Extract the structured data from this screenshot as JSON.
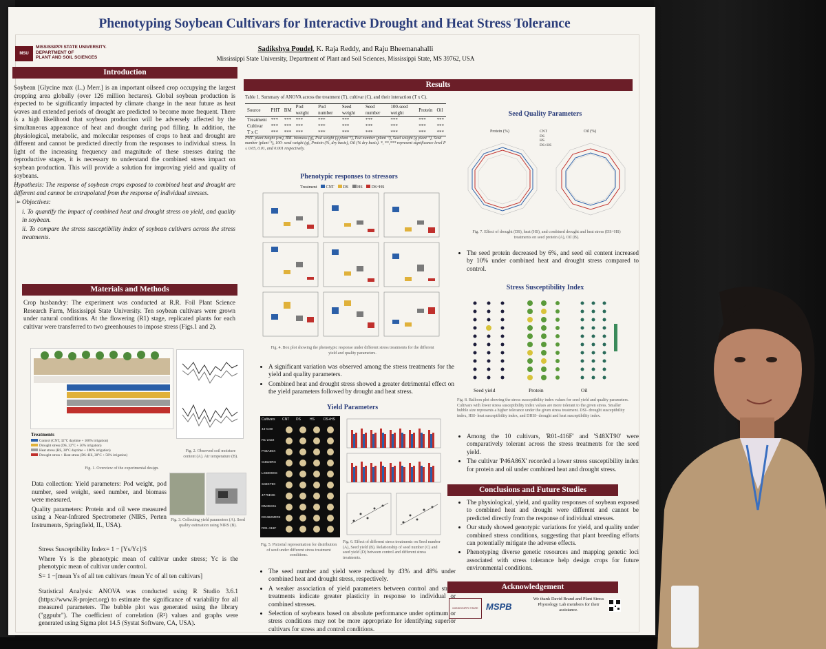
{
  "poster": {
    "title": "Phenotyping Soybean Cultivars for Interactive Drought and Heat Stress Tolerance",
    "authors_lead": "Sadikshya Poudel",
    "authors_rest": ", K. Raja Reddy, and Raju Bheemanahalli",
    "affiliation": "Mississippi State University, Department of Plant and Soil Sciences, Mississippi State, MS 39762, USA",
    "logo": {
      "line1": "MISSISSIPPI STATE UNIVERSITY.",
      "line2": "DEPARTMENT OF",
      "line3": "PLANT AND SOIL SCIENCES",
      "mark": "MSU"
    }
  },
  "introduction": {
    "heading": "Introduction",
    "paragraph": "Soybean [Glycine max (L.) Merr.] is an important oilseed crop occupying the largest cropping area globally (over 126 million hectares). Global soybean production is expected to be significantly impacted by climate change in the near future as heat waves and extended periods of drought are predicted to become more frequent. There is a high likelihood that soybean production will be adversely affected by the simultaneous appearance of heat and drought during pod filling. In addition, the physiological, metabolic, and molecular responses of crops to heat and drought are different and cannot be predicted directly from the responses to individual stress. In light of the increasing frequency and magnitude of these stresses during the reproductive stages, it is necessary to understand the combined stress impact on soybean production. This will provide a solution for improving yield and quality of soybeans.",
    "hypothesis": "Hypothesis: The response of soybean crops exposed to combined heat and drought are different and cannot be extrapolated from the response of individual stresses.",
    "objectives_label": "Objectives:",
    "objective_1": "i. To quantify the impact of combined heat and drought stress on yield, and quality in soybean.",
    "objective_2": "ii. To compare the stress susceptibility index of soybean cultivars across the stress treatments."
  },
  "methods": {
    "heading": "Materials and Methods",
    "crop_husbandry": "Crop husbandry: The experiment was conducted at R.R. Foil Plant Science Research Farm, Mississippi State University. Ten soybean cultivars were grown under natural conditions. At the flowering (R1) stage, replicated plants for each cultivar were transferred to two greenhouses to impose stress (Figs.1 and 2).",
    "treatments_label": "Treatments",
    "treatments": [
      "Control (CNT, 32°C daytime + 100% irrigation)",
      "Drought stress (DS, 32°C + 50% irrigation)",
      "Heat stress (HS, 38°C daytime + 100% irrigation)",
      "Drought stress + Heat stress (DS+HS, 38°C + 50% irrigation)"
    ],
    "fig1_caption": "Fig. 1. Overview of the experimental design.",
    "fig2_caption": "Fig. 2. Observed soil moisture content (A). Air temperature (B).",
    "data_collection": "Data collection: Yield parameters: Pod weight, pod number, seed weight, seed number, and biomass were measured.",
    "quality": "Quality parameters: Protein and oil were measured using a Near-Infrared Spectrometer (NIRS, Perten Instruments, Springfield, IL, USA).",
    "fig3_caption": "Fig. 3. Collecting yield parameters (A). Seed quality estimation using NIRS (B).",
    "ssi_formula": "Stress Susceptibility Index= 1 − [Ys/Yc]/S",
    "ssi_desc": "Where Ys is the phenotypic mean of cultivar under stress; Yc is the phenotypic mean of cultivar under control.",
    "ssi_s": "S= 1 −[mean Ys of all ten cultivars /mean Yc of all ten cultivars]",
    "stats": "Statistical Analysis: ANOVA was conducted using R Studio 3.6.1 (https://www.R-project.org) to estimate the significance of variability for all measured parameters. The bubble plot was generated using the library (\"ggpubr\"). The coefficient of correlation (R²) values and graphs were generated using Sigma plot 14.5 (Systat Software, CA, USA)."
  },
  "results": {
    "heading": "Results",
    "table_caption": "Table 1. Summary of ANOVA across the treatment (T), cultivar (C), and their interaction (T x C).",
    "table_headers": [
      "Source",
      "PHT",
      "BM",
      "Pod weight",
      "Pod number",
      "Seed weight",
      "Seed number",
      "100-seed weight",
      "Protein",
      "Oil"
    ],
    "table_rows": [
      [
        "Treatment",
        "***",
        "***",
        "***",
        "***",
        "***",
        "***",
        "***",
        "***",
        "***"
      ],
      [
        "Cultivar",
        "***",
        "***",
        "***",
        "***",
        "***",
        "***",
        "***",
        "***",
        "***"
      ],
      [
        "T x C",
        "***",
        "***",
        "***",
        "***",
        "***",
        "***",
        "***",
        "***",
        "***"
      ]
    ],
    "table_note": "PHT- plant height (cm), BM- biomass (g), Pod weight (g plant⁻¹), Pod number (plant⁻¹), Seed weight (g plant⁻¹), Seed number (plant⁻¹), 100- seed weight (g), Protein (%, dry basis), Oil (% dry basis). *, **,*** represent significance level P ≤ 0.05, 0.01, and 0.001 respectively.",
    "phenotypic_title": "Phenotypic responses to stressors",
    "legend_label": "Treatment",
    "legend_items": [
      "CNT",
      "DS",
      "HS",
      "DS+HS"
    ],
    "fig4_caption": "Fig. 4. Box plot showing the phenotypic response under different stress treatments for the different yield and quality parameters.",
    "bullets_1": [
      "A significant variation was observed among the stress treatments for the yield and quality parameters.",
      "Combined heat and drought stress showed a greater detrimental effect on the yield parameters followed by drought and heat stress."
    ],
    "yield_title": "Yield Parameters",
    "cultivar_header": [
      "Cultivars",
      "CNT",
      "DS",
      "HS",
      "DS+HS"
    ],
    "cultivars": [
      "44-G49",
      "R1-2422",
      "P46A86X",
      "G4620RX",
      "LS5009XS",
      "S48XT90",
      "4775E3S",
      "DM45X61",
      "DG4625RR2",
      "R01-416F"
    ],
    "fig5_caption": "Fig. 5. Pictorial representation for distribution of seed under different stress treatment conditions.",
    "fig6_caption": "Fig. 6. Effect of different stress treatments on Seed number (A), Seed yield (B). Relationship of seed number (C) and seed yield (D) between control and different stress treatments.",
    "bullets_2": [
      "The seed number and yield were reduced by 43% and 48% under combined heat and drought stress, respectively.",
      "A weaker association of yield parameters between control and stress treatments indicate greater plasticity in response to individual or combined stresses.",
      "Selection of soybeans based on absolute performance under optimum or stress conditions may not be more appropriate for identifying superior cultivars for stress and control conditions."
    ]
  },
  "seed_quality": {
    "title": "Seed Quality Parameters",
    "radar_a_label": "Protein (%)",
    "radar_b_label": "Oil (%)",
    "fig7_caption": "Fig. 7. Effect of drought (DS), heat (HS), and combined drought and heat stress (DS+HS) treatments on seed protein (A), Oil (B).",
    "bullet": "The seed protein decreased by 6%, and seed oil content increased by 10% under combined heat and drought stress compared to control."
  },
  "ssi": {
    "title": "Stress Susceptibility Index",
    "columns": [
      "Seed yield",
      "Protein",
      "Oil"
    ],
    "fig8_caption": "Fig. 8. Balloon plot showing the stress susceptibility index values for seed yield and quality parameters. Cultivars with lower stress susceptibility index values are more tolerant to the given stress. Smaller bubble size represents a higher tolerance under the given stress treatment. DSI- drought susceptibility index, HSI- heat susceptibility index, and DHSI- drought and heat susceptibility index.",
    "bullets": [
      "Among the 10 cultivars, 'R01-416F' and 'S48XT90' were comparatively tolerant across the stress treatments for the seed yield.",
      "The cultivar 'P46A86X' recorded a lower stress susceptibility index for protein and oil under combined heat and drought stress."
    ]
  },
  "conclusions": {
    "heading": "Conclusions and Future Studies",
    "bullets": [
      "The physiological, yield, and quality responses of soybean exposed to combined heat and drought were different and cannot be predicted directly from the response of individual stresses.",
      "Our study showed genotypic variations for yield, and quality under combined stress conditions, suggesting that plant breeding efforts can potentially mitigate the adverse effects.",
      "Phenotyping diverse genetic resources and mapping genetic loci associated with stress tolerance help design crops for future environmental conditions."
    ]
  },
  "acknowledgement": {
    "heading": "Acknowledgement",
    "text": "We thank David Brand and Plant Stress Physiology Lab members for their assistance.",
    "logo_mspb": "MSPB",
    "logo_mafes": "MISSISSIPPI STATE"
  },
  "colors": {
    "maroon": "#6b1e28",
    "title_blue": "#2b3d7a",
    "cnt": "#2b5fa8",
    "ds": "#e0b13a",
    "hs": "#7a7a7a",
    "dshs": "#c0302c"
  }
}
